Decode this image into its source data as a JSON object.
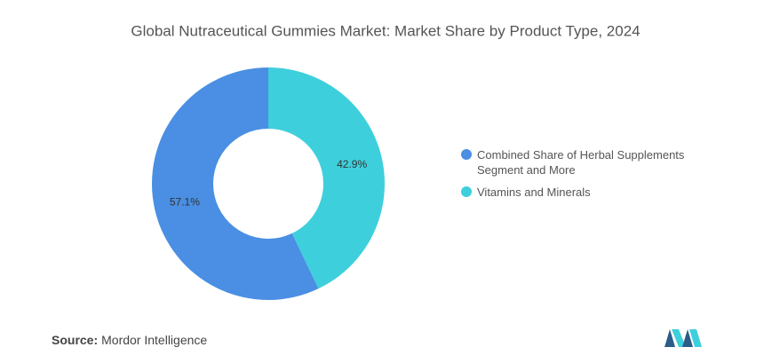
{
  "chart_data": {
    "type": "donut",
    "title": "Global Nutraceutical Gummies Market: Market Share by Product Type, 2024",
    "categories": [
      "Combined Share of Herbal Supplements Segment and More",
      "Vitamins and Minerals"
    ],
    "values": [
      57.1,
      42.9
    ],
    "value_labels": [
      "57.1%",
      "42.9%"
    ],
    "colors": [
      "#4a8fe3",
      "#3ecfdc"
    ],
    "legend": "right"
  },
  "footer": {
    "source_label": "Source:",
    "source": "Mordor Intelligence"
  }
}
